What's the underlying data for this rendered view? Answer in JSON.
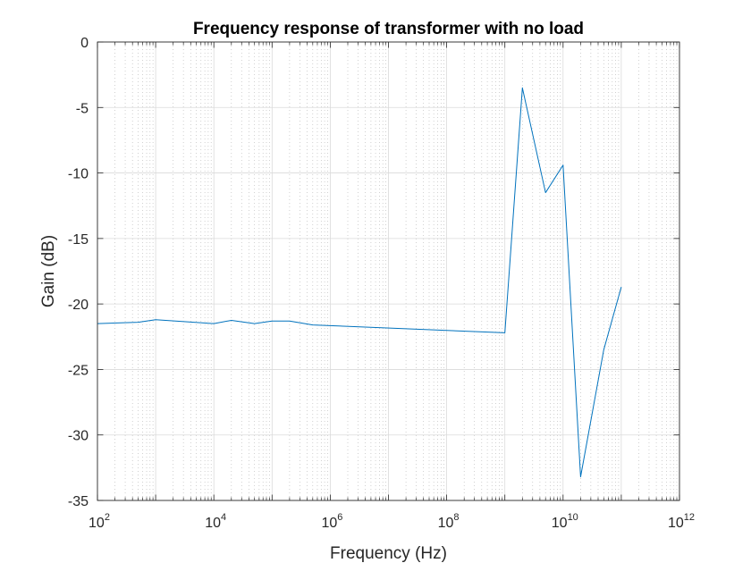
{
  "chart_data": {
    "type": "line",
    "title": "Frequency response of transformer with no load",
    "xlabel": "Frequency (Hz)",
    "ylabel": "Gain (dB)",
    "xscale": "log",
    "xlim": [
      100,
      1000000000000
    ],
    "ylim": [
      -35,
      0
    ],
    "grid": true,
    "minor_grid": true,
    "line_color": "#0072BD",
    "y_ticks": [
      "0",
      "-5",
      "-10",
      "-15",
      "-20",
      "-25",
      "-30",
      "-35"
    ],
    "y_tick_values": [
      0,
      -5,
      -10,
      -15,
      -20,
      -25,
      -30,
      -35
    ],
    "x_ticks": [
      {
        "base": "10",
        "exp": "2",
        "value": 100
      },
      {
        "base": "10",
        "exp": "4",
        "value": 10000
      },
      {
        "base": "10",
        "exp": "6",
        "value": 1000000
      },
      {
        "base": "10",
        "exp": "8",
        "value": 100000000
      },
      {
        "base": "10",
        "exp": "10",
        "value": 10000000000
      },
      {
        "base": "10",
        "exp": "12",
        "value": 1000000000000
      }
    ],
    "series": [
      {
        "x": [
          100,
          500,
          1000,
          10000,
          20000,
          50000,
          100000,
          200000,
          500000,
          1000000000,
          2000000000,
          5000000000,
          10000000000,
          20000000000,
          50000000000,
          100000000000
        ],
        "y": [
          -21.5,
          -21.4,
          -21.2,
          -21.5,
          -21.25,
          -21.5,
          -21.3,
          -21.3,
          -21.6,
          -22.2,
          -3.5,
          -11.5,
          -9.4,
          -33.2,
          -23.5,
          -18.7
        ]
      }
    ]
  }
}
